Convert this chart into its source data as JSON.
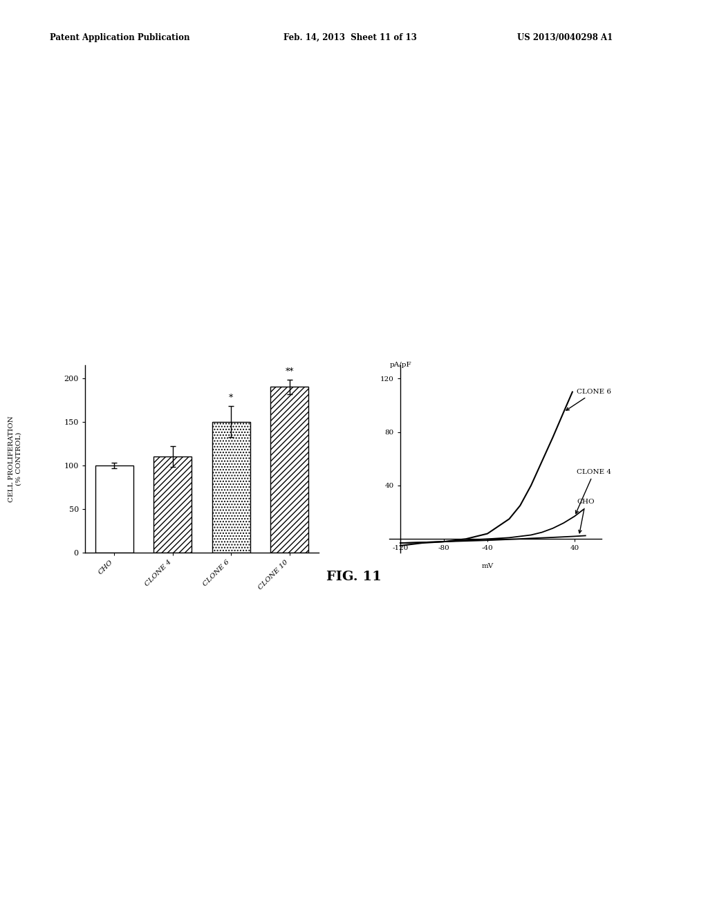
{
  "header_left": "Patent Application Publication",
  "header_mid": "Feb. 14, 2013  Sheet 11 of 13",
  "header_right": "US 2013/0040298 A1",
  "fig_label": "FIG. 11",
  "bar_categories": [
    "CHO",
    "CLONE 4",
    "CLONE 6",
    "CLONE 10"
  ],
  "bar_values": [
    100,
    110,
    150,
    190
  ],
  "bar_errors": [
    3,
    12,
    18,
    8
  ],
  "bar_ylabel": "CELL PROLIFERATION\n(% CONTROL)",
  "bar_yticks": [
    0,
    50,
    100,
    150,
    200
  ],
  "bar_significance": [
    "",
    "",
    "*",
    "**"
  ],
  "iv_ylabel": "pA/pF",
  "iv_xlabel": "mV",
  "iv_ylim": [
    -10,
    130
  ],
  "iv_xlim": [
    -130,
    65
  ],
  "background_color": "#ffffff",
  "text_color": "#000000"
}
